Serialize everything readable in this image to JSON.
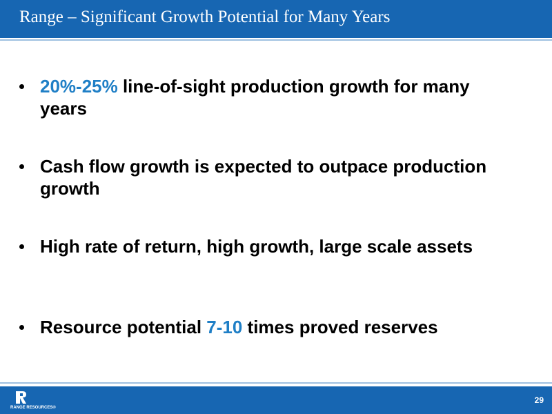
{
  "header": {
    "title": "Range – Significant Growth Potential for Many Years"
  },
  "bullets": [
    {
      "parts": [
        {
          "text": "20%-25%",
          "color": "#1f7fc6"
        },
        {
          "text": " line-of-sight production growth for many years"
        }
      ]
    },
    {
      "parts": [
        {
          "text": "Cash flow growth is expected to outpace production growth"
        }
      ]
    },
    {
      "parts": [
        {
          "text": "High rate of return, high growth, large scale assets"
        }
      ]
    },
    {
      "parts": [
        {
          "text": "Resource potential "
        },
        {
          "text": "7-10",
          "color": "#1f7fc6"
        },
        {
          "text": " times proved reserves"
        }
      ]
    }
  ],
  "footer": {
    "logo_text": "RANGE RESOURCES®",
    "page_number": "29"
  }
}
